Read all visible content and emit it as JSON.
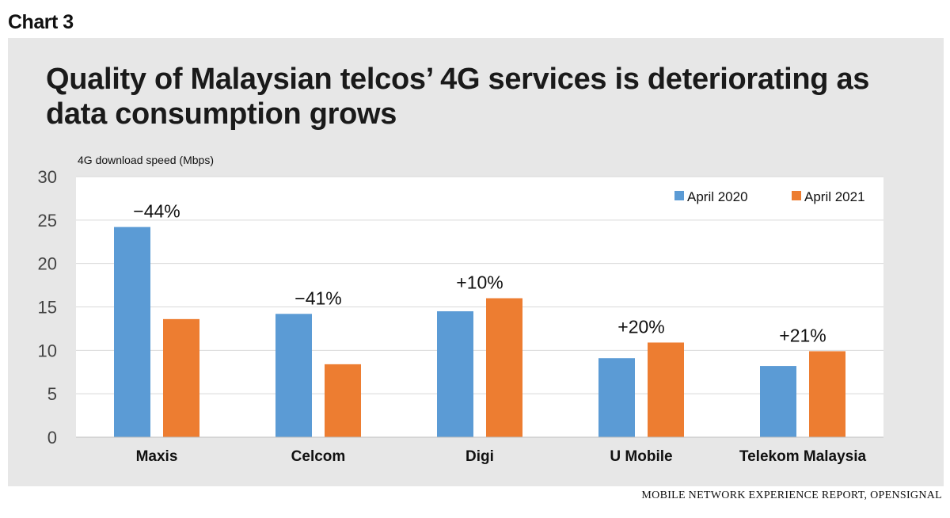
{
  "header": {
    "label": "Chart 3"
  },
  "source": "MOBILE NETWORK EXPERIENCE REPORT, OPENSIGNAL",
  "colors": {
    "series_2020": "#5b9bd5",
    "series_2021": "#ed7d31",
    "panel": "#e7e7e7"
  },
  "chart_data": {
    "type": "bar",
    "title": "Quality of Malaysian telcos’ 4G services is deteriorating as data consumption grows",
    "ylabel": "4G download speed (Mbps)",
    "xlabel": "",
    "ylim": [
      0,
      30
    ],
    "yticks": [
      0,
      5,
      10,
      15,
      20,
      25,
      30
    ],
    "grid": true,
    "legend_position": "top-right",
    "categories": [
      "Maxis",
      "Celcom",
      "Digi",
      "U Mobile",
      "Telekom Malaysia"
    ],
    "series": [
      {
        "name": "April 2020",
        "values": [
          24.2,
          14.2,
          14.5,
          9.1,
          8.2
        ]
      },
      {
        "name": "April 2021",
        "values": [
          13.6,
          8.4,
          16.0,
          10.9,
          9.9
        ]
      }
    ],
    "annotations": [
      "−44%",
      "−41%",
      "+10%",
      "+20%",
      "+21%"
    ]
  }
}
